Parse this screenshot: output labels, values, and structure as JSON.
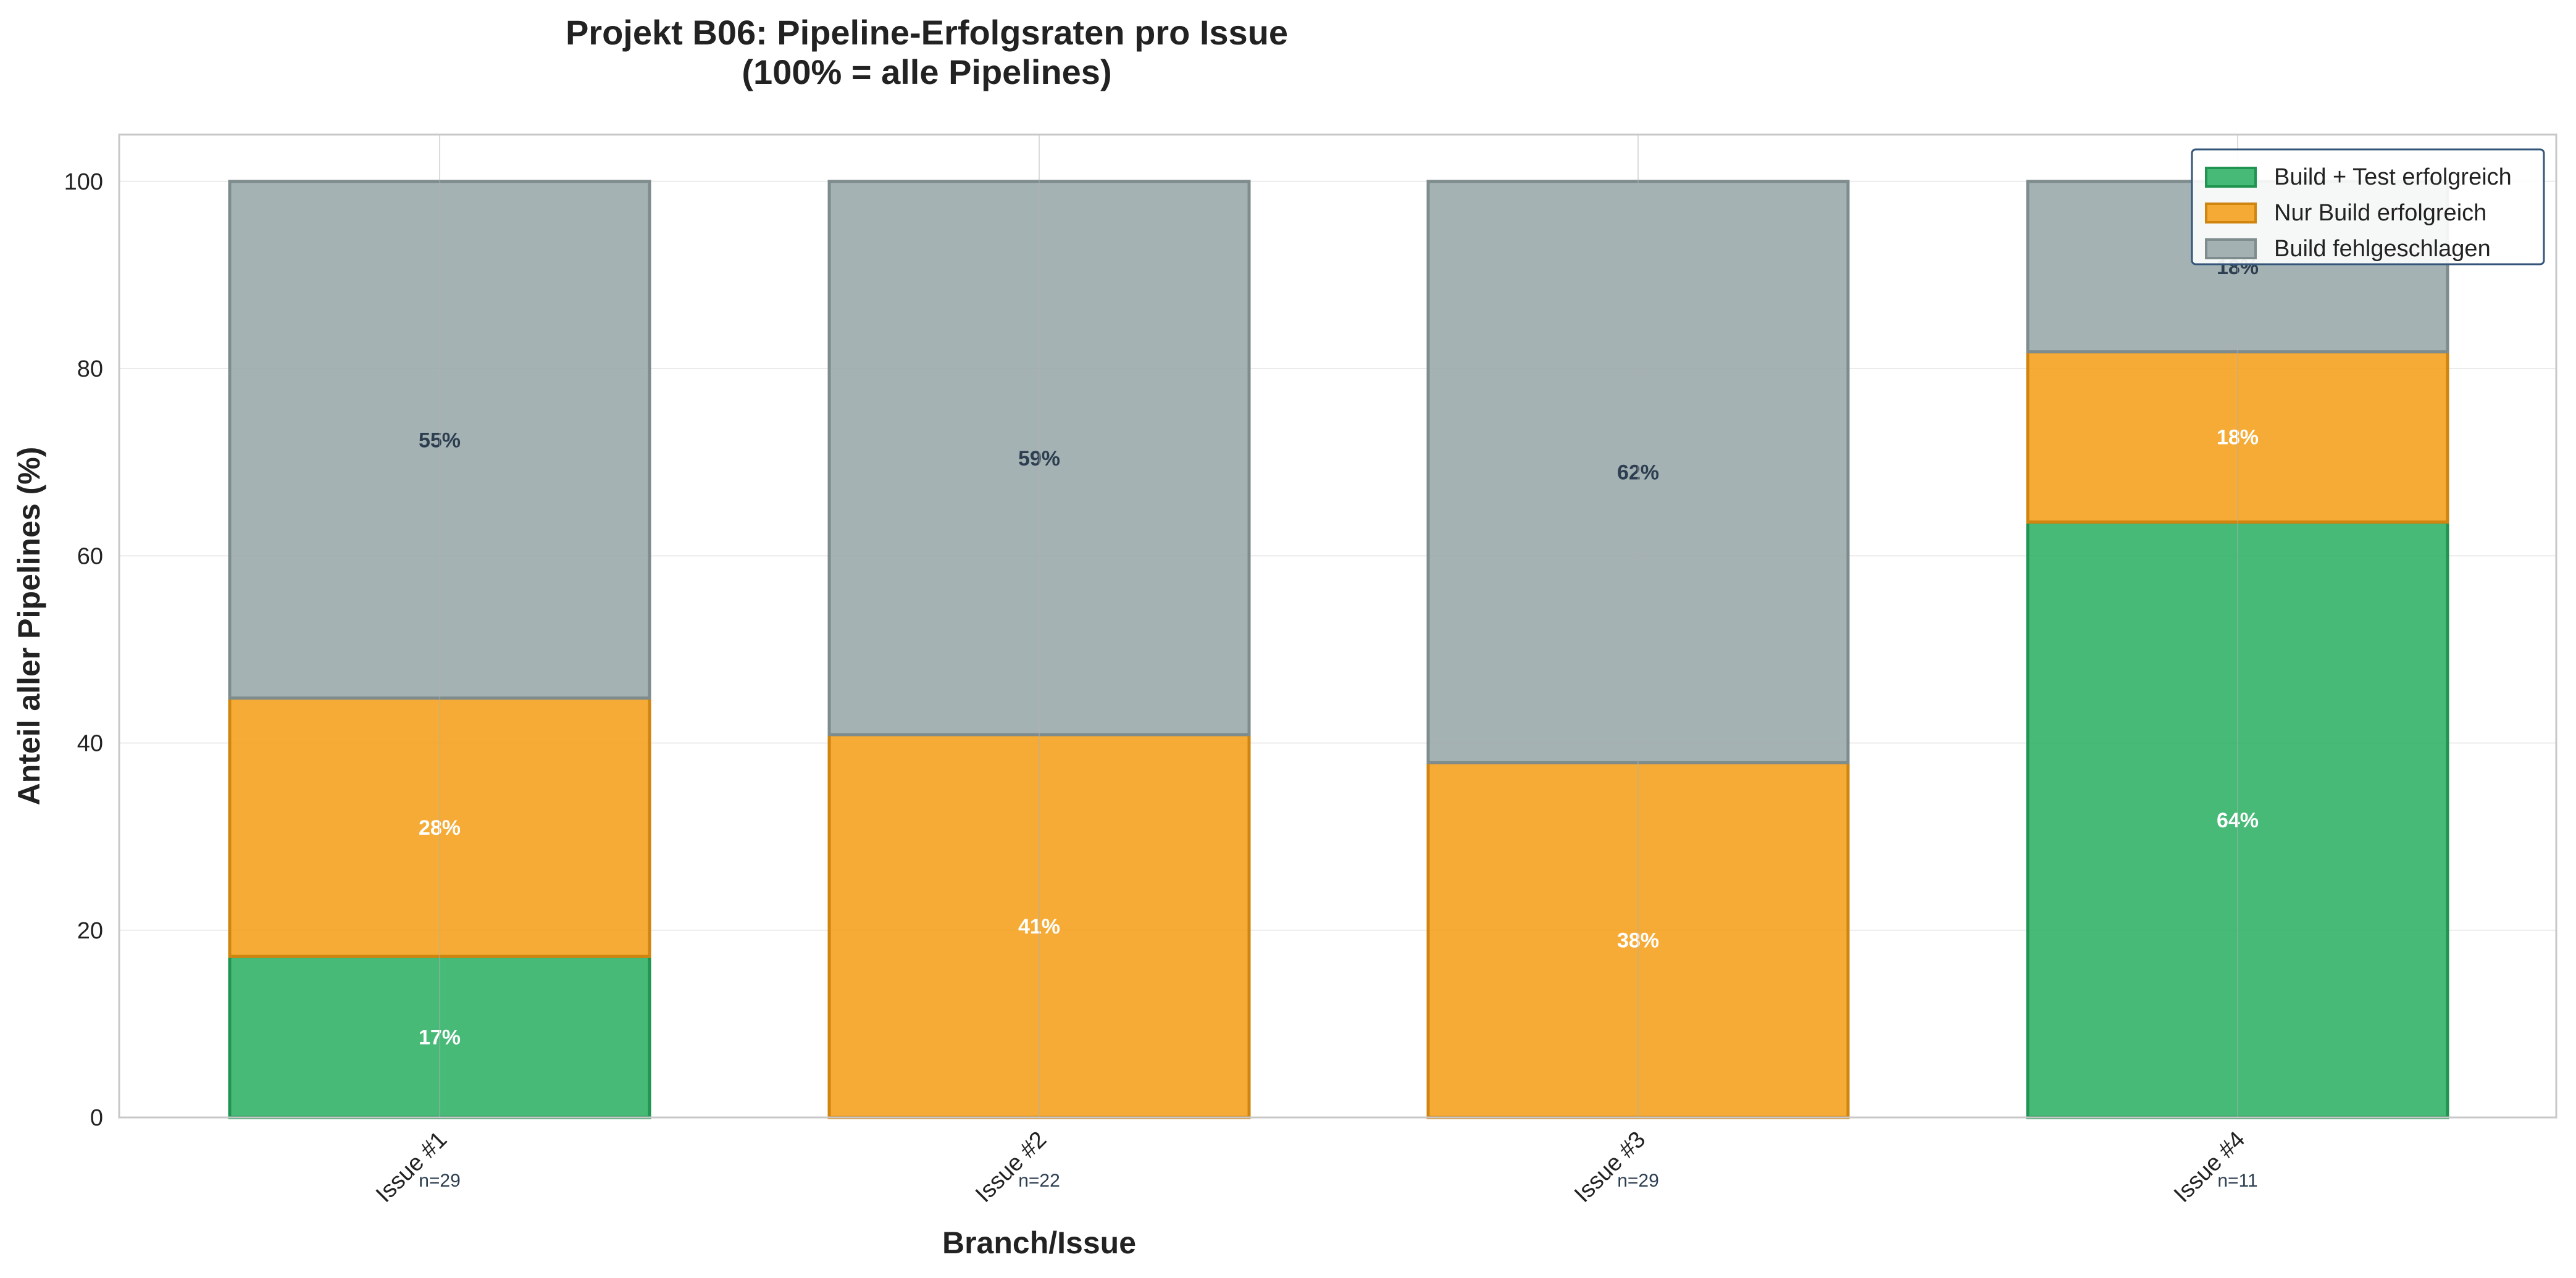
{
  "chart_data": {
    "type": "bar",
    "stacked": true,
    "title": "Projekt B06: Pipeline-Erfolgsraten pro Issue",
    "subtitle": "(100% = alle Pipelines)",
    "xlabel": "Branch/Issue",
    "ylabel": "Anteil aller Pipelines (%)",
    "ylim": [
      0,
      105
    ],
    "yticks": [
      "0",
      "20",
      "40",
      "60",
      "80",
      "100"
    ],
    "grid": true,
    "legend_position": "top-right",
    "categories": [
      "Issue #1",
      "Issue #2",
      "Issue #3",
      "Issue #4"
    ],
    "sample_sizes": [
      "n=29",
      "n=22",
      "n=29",
      "n=11"
    ],
    "series": [
      {
        "name": "Build + Test erfolgreich",
        "color": "#27ae60",
        "label_color": "#ffffff",
        "values": [
          17.2,
          0,
          0,
          63.6
        ],
        "labels": [
          "17%",
          "",
          "",
          "64%"
        ]
      },
      {
        "name": "Nur Build erfolgreich",
        "color": "#f39c12",
        "label_color": "#ffffff",
        "values": [
          27.6,
          40.9,
          37.9,
          18.2
        ],
        "labels": [
          "28%",
          "41%",
          "38%",
          "18%"
        ]
      },
      {
        "name": "Build fehlgeschlagen",
        "color": "#95a5a6",
        "label_color": "#2c3e50",
        "values": [
          55.2,
          59.1,
          62.1,
          18.2
        ],
        "labels": [
          "55%",
          "59%",
          "62%",
          "18%"
        ]
      }
    ]
  }
}
